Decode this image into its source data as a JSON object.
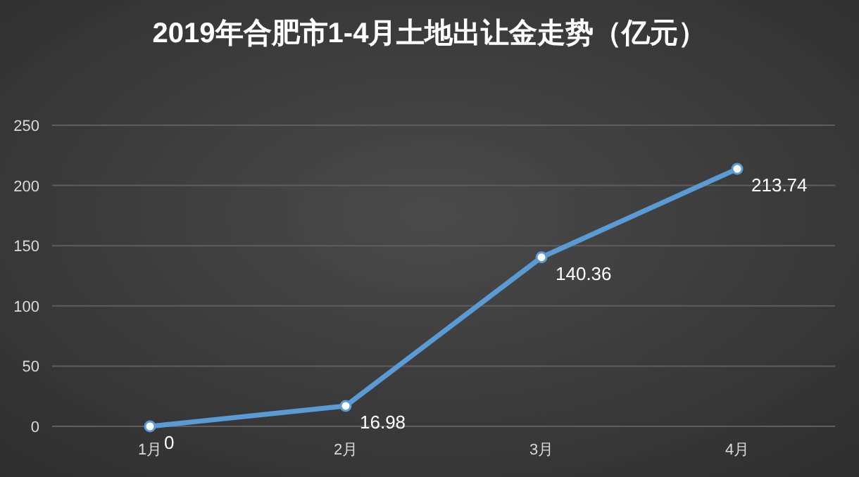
{
  "chart_data": {
    "type": "line",
    "title": "2019年合肥市1-4月土地出让金走势（亿元）",
    "categories": [
      "1月",
      "2月",
      "3月",
      "4月"
    ],
    "series": [
      {
        "color": "#5b9bd5",
        "values": [
          0,
          16.98,
          140.36,
          213.74
        ]
      }
    ],
    "ylim": [
      0,
      250
    ],
    "yticks": [
      0,
      50,
      100,
      150,
      200,
      250
    ],
    "grid": "y",
    "marker": "circle",
    "line_style": "solid",
    "data_labels": true
  }
}
